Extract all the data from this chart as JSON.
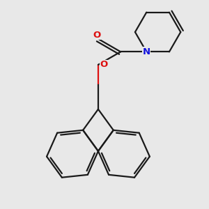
{
  "bg_color": "#e8e8e8",
  "line_color": "#1a1a1a",
  "o_color": "#dd1111",
  "n_color": "#1111dd",
  "line_width": 1.6,
  "figsize": [
    3.0,
    3.0
  ],
  "dpi": 100,
  "xlim": [
    0.0,
    6.0
  ],
  "ylim": [
    0.0,
    6.5
  ]
}
